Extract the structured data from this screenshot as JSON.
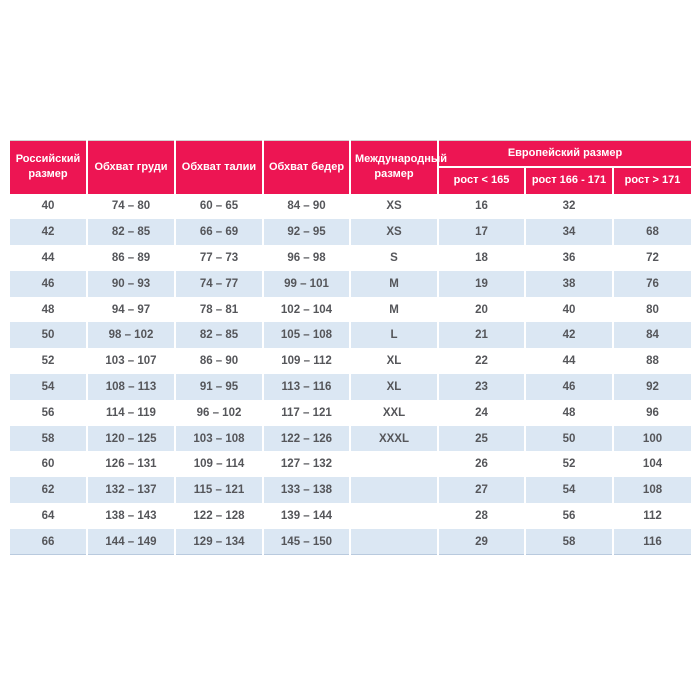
{
  "page": {
    "background_color": "#ffffff"
  },
  "size_table": {
    "accent_color": "#ed1553",
    "alt_row_color": "#dbe7f3",
    "header_text_color": "#ffffff",
    "body_text_color": "#55565a",
    "header": {
      "russian_size": "Российский размер",
      "chest": "Обхват груди",
      "waist": "Обхват талии",
      "hips": "Обхват бедер",
      "international": "Международный размер",
      "european": "Европейский размер",
      "sub": {
        "height_lt_165": "рост < 165",
        "height_166_171": "рост 166 - 171",
        "height_gt_171": "рост > 171"
      }
    },
    "column_keys": [
      "russian-size",
      "chest",
      "waist",
      "hips",
      "international-size",
      "height-lt-165",
      "height-166-171",
      "height-gt-171"
    ],
    "rows": [
      [
        "40",
        "74 – 80",
        "60 – 65",
        "84 – 90",
        "XS",
        "16",
        "32",
        ""
      ],
      [
        "42",
        "82 – 85",
        "66 – 69",
        "92 – 95",
        "XS",
        "17",
        "34",
        "68"
      ],
      [
        "44",
        "86 – 89",
        "77 – 73",
        "96 – 98",
        "S",
        "18",
        "36",
        "72"
      ],
      [
        "46",
        "90 – 93",
        "74 – 77",
        "99 – 101",
        "M",
        "19",
        "38",
        "76"
      ],
      [
        "48",
        "94 – 97",
        "78 – 81",
        "102 – 104",
        "M",
        "20",
        "40",
        "80"
      ],
      [
        "50",
        "98 – 102",
        "82 – 85",
        "105 – 108",
        "L",
        "21",
        "42",
        "84"
      ],
      [
        "52",
        "103 – 107",
        "86 – 90",
        "109 – 112",
        "XL",
        "22",
        "44",
        "88"
      ],
      [
        "54",
        "108 – 113",
        "91 – 95",
        "113 – 116",
        "XL",
        "23",
        "46",
        "92"
      ],
      [
        "56",
        "114 – 119",
        "96 – 102",
        "117 – 121",
        "XXL",
        "24",
        "48",
        "96"
      ],
      [
        "58",
        "120 – 125",
        "103 – 108",
        "122 – 126",
        "XXXL",
        "25",
        "50",
        "100"
      ],
      [
        "60",
        "126 – 131",
        "109 – 114",
        "127 – 132",
        "",
        "26",
        "52",
        "104"
      ],
      [
        "62",
        "132 – 137",
        "115 – 121",
        "133 – 138",
        "",
        "27",
        "54",
        "108"
      ],
      [
        "64",
        "138 – 143",
        "122 – 128",
        "139 – 144",
        "",
        "28",
        "56",
        "112"
      ],
      [
        "66",
        "144 – 149",
        "129 – 134",
        "145 – 150",
        "",
        "29",
        "58",
        "116"
      ]
    ]
  }
}
